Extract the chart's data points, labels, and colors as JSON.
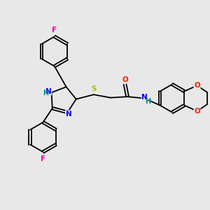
{
  "background_color": "#e8e8e8",
  "fig_width": 3.0,
  "fig_height": 3.0,
  "dpi": 100,
  "atom_colors": {
    "C": "#000000",
    "N": "#0000ee",
    "O": "#ee2200",
    "S": "#bbbb00",
    "F": "#ee00aa",
    "H": "#008888"
  },
  "bond_color": "#000000",
  "bond_width": 1.3
}
